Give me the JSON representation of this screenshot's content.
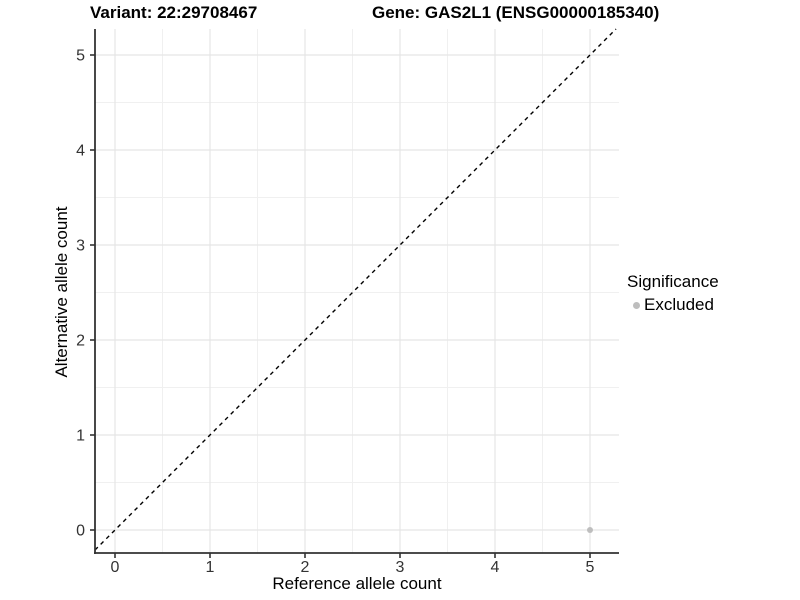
{
  "page": {
    "title_left": "Variant: 22:29708467",
    "title_right": "Gene: GAS2L1 (ENSG00000185340)"
  },
  "chart_data": {
    "type": "scatter",
    "title": "Variant: 22:29708467    Gene: GAS2L1 (ENSG00000185340)",
    "xlabel": "Reference allele count",
    "ylabel": "Alternative allele count",
    "xlim": [
      -0.25,
      5.3
    ],
    "ylim": [
      -0.25,
      5.3
    ],
    "xticks": [
      "0",
      "1",
      "2",
      "3",
      "4",
      "5"
    ],
    "yticks": [
      "0",
      "1",
      "2",
      "3",
      "4",
      "5"
    ],
    "grid": "major+minor",
    "grid_major_color": "#e5e5e5",
    "grid_minor_color": "#f0f0f0",
    "axis_color": "#333333",
    "identity_line": {
      "slope": 1,
      "intercept": 0,
      "style": "dashed",
      "color": "#000000"
    },
    "series": [
      {
        "name": "Excluded",
        "color": "#bebebe",
        "point_radius": 3,
        "points": [
          {
            "x": 5,
            "y": 0
          }
        ]
      }
    ],
    "legend": {
      "title": "Significance",
      "position": "right",
      "entries": [
        {
          "label": "Excluded",
          "color": "#bebebe"
        }
      ]
    }
  }
}
